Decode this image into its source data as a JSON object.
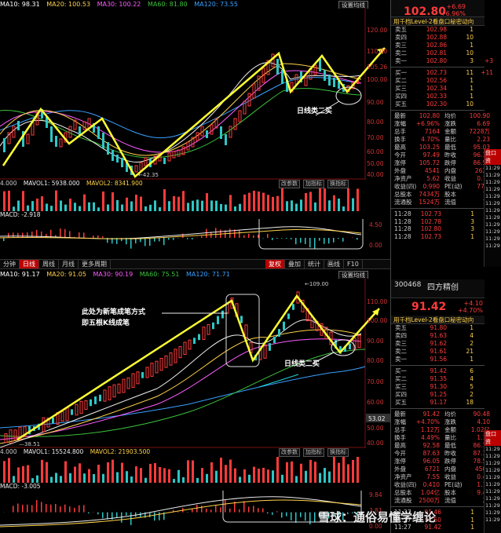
{
  "panel1": {
    "ma": [
      {
        "label": "MA10: 98.31",
        "color": "#ffffff"
      },
      {
        "label": "MA20: 100.53",
        "color": "#ffd24a"
      },
      {
        "label": "MA30: 100.22",
        "color": "#ff5bff"
      },
      {
        "label": "MA60: 81.80",
        "color": "#3cc23c"
      },
      {
        "label": "MA120: 73.55",
        "color": "#3aa0ff"
      }
    ],
    "cycle": "设置均线",
    "annotation": "日线类二买",
    "axis": [
      "120.00",
      "110.00",
      "105.26",
      "100.00",
      "90.00",
      "80.00",
      "70.00",
      "60.00",
      "50.00",
      "40.00"
    ],
    "low_label": "42.35",
    "vol_bar": {
      "a": "4.000",
      "b": "MAVOL1: 5938.000",
      "c": "MAVOL2: 8341.900"
    },
    "vol_btns": [
      "改参数",
      "加指标",
      "换指标"
    ],
    "macd": "MACD: -2.918",
    "macd_axis": [
      "4.50",
      "0.00"
    ],
    "tabs": [
      "分钟",
      "日线",
      "周线",
      "月线",
      "更多周期"
    ],
    "tab_right": [
      "复权",
      "叠加",
      "统计",
      "画线",
      "F10",
      "标记",
      "自选",
      "返回"
    ]
  },
  "panel2": {
    "ma": [
      {
        "label": "MA10: 91.17",
        "color": "#ffffff"
      },
      {
        "label": "MA20: 91.05",
        "color": "#ffd24a"
      },
      {
        "label": "MA30: 90.19",
        "color": "#ff5bff"
      },
      {
        "label": "MA60: 75.51",
        "color": "#3cc23c"
      },
      {
        "label": "MA120: 71.71",
        "color": "#3aa0ff"
      }
    ],
    "cycle": "设置均线",
    "annotation1a": "此处为新笔成笔方式",
    "annotation1b": "即五根K线成笔",
    "annotation2": "日线类二买",
    "axis": [
      "110.00",
      "100.00",
      "90.00",
      "80.00",
      "70.00",
      "60.00",
      "53.02",
      "50.00",
      "40.00"
    ],
    "high_label": "109.00",
    "low_label": "38.51",
    "vol_bar": {
      "a": "4.000",
      "b": "MAVOL1: 15524.800",
      "c": "MAVOL2: 21903.500"
    },
    "vol_btns": [
      "改参数",
      "加指标",
      "换指标"
    ],
    "macd": "MACD: -3.005",
    "macd_axis": [
      "9.84",
      "3.81",
      "0.00"
    ]
  },
  "stock1": {
    "price": "102.80",
    "change1": "+6.69",
    "change2": "+6.96%",
    "level_title": "用千档Level-2看盘口秘密动向",
    "asks": [
      {
        "label": "卖五",
        "price": "102.98",
        "vol": "1",
        "chg": ""
      },
      {
        "label": "卖四",
        "price": "102.88",
        "vol": "10",
        "chg": ""
      },
      {
        "label": "卖三",
        "price": "102.86",
        "vol": "1",
        "chg": ""
      },
      {
        "label": "卖二",
        "price": "102.81",
        "vol": "10",
        "chg": ""
      },
      {
        "label": "卖一",
        "price": "102.80",
        "vol": "3",
        "chg": "+3"
      }
    ],
    "bids": [
      {
        "label": "买一",
        "price": "102.73",
        "vol": "11",
        "chg": "+11"
      },
      {
        "label": "买二",
        "price": "102.56",
        "vol": "1",
        "chg": ""
      },
      {
        "label": "买三",
        "price": "102.34",
        "vol": "1",
        "chg": ""
      },
      {
        "label": "买四",
        "price": "102.33",
        "vol": "1",
        "chg": ""
      },
      {
        "label": "买五",
        "price": "102.30",
        "vol": "10",
        "chg": ""
      }
    ],
    "stats": [
      [
        "最新",
        "102.80",
        "均价",
        "100.90"
      ],
      [
        "涨幅",
        "+6.96%",
        "涨跌",
        "6.69"
      ],
      [
        "总手",
        "7164",
        "金额",
        "7228万"
      ],
      [
        "换手",
        "4.70%",
        "量比",
        "2.23"
      ],
      [
        "最高",
        "103.25",
        "最低",
        "95.03"
      ],
      [
        "今开",
        "97.49",
        "昨收",
        "96.11"
      ],
      [
        "涨停",
        "105.72",
        "跌停",
        "86.50"
      ],
      [
        "外盘",
        "4541",
        "内盘",
        "2623"
      ],
      [
        "净资产",
        "5.62",
        "收益",
        "0.73"
      ],
      [
        "收益(四)",
        "0.990",
        "PE(动)",
        "77.8"
      ],
      [
        "总股本",
        "7434万",
        "股本",
        "76"
      ],
      [
        "流通股",
        "1524万",
        "流值",
        "15"
      ]
    ],
    "ticks": [
      {
        "t": "11:28",
        "p": "102.73",
        "v": "1"
      },
      {
        "t": "11:28",
        "p": "102.78",
        "v": "3"
      },
      {
        "t": "11:28",
        "p": "102.80",
        "v": "3"
      },
      {
        "t": "11:28",
        "p": "102.73",
        "v": "1"
      }
    ],
    "side_header": "盘口资",
    "side_times": [
      "11:29",
      "11:29",
      "11:29",
      "11:29",
      "11:29",
      "11:29",
      "11:29",
      "11:29",
      "11:29",
      "11:29",
      "11:29",
      "11:29"
    ]
  },
  "stock2": {
    "code": "300468",
    "name": "四方精创",
    "price": "91.42",
    "change1": "+4.10",
    "change2": "+4.70%",
    "level_title": "用千档Level-2看盘口秘密动向",
    "asks": [
      {
        "label": "卖五",
        "price": "91.80",
        "vol": "1"
      },
      {
        "label": "卖四",
        "price": "91.63",
        "vol": "4"
      },
      {
        "label": "卖三",
        "price": "91.62",
        "vol": "2"
      },
      {
        "label": "卖二",
        "price": "91.61",
        "vol": "21"
      },
      {
        "label": "卖一",
        "price": "91.56",
        "vol": "1"
      }
    ],
    "bids": [
      {
        "label": "买一",
        "price": "91.42",
        "vol": "6"
      },
      {
        "label": "买二",
        "price": "91.35",
        "vol": "4"
      },
      {
        "label": "买三",
        "price": "91.30",
        "vol": "5"
      },
      {
        "label": "买四",
        "price": "91.25",
        "vol": "2"
      },
      {
        "label": "买五",
        "price": "91.17",
        "vol": "18"
      }
    ],
    "stats": [
      [
        "最新",
        "91.42",
        "均价",
        "90.48"
      ],
      [
        "涨幅",
        "+4.70%",
        "涨跌",
        "4.10"
      ],
      [
        "总手",
        "1.12万",
        "金额",
        "1.02亿"
      ],
      [
        "换手",
        "4.49%",
        "量比",
        "1.19"
      ],
      [
        "最高",
        "92.58",
        "最低",
        "86.10"
      ],
      [
        "今开",
        "87.63",
        "昨收",
        "87.32"
      ],
      [
        "涨停",
        "96.05",
        "跌停",
        "78.59"
      ],
      [
        "外盘",
        "6721",
        "内盘",
        "4506"
      ],
      [
        "净资产",
        "7.55",
        "收益",
        "0.40"
      ],
      [
        "收益(四)",
        "0.410",
        "PE(动)",
        "1.10"
      ],
      [
        "总股本",
        "1.04亿",
        "股本",
        "9.44"
      ],
      [
        "流通股",
        "2500万",
        "流值",
        "22"
      ]
    ],
    "ticks": [
      {
        "t": "11:27",
        "p": "91.46",
        "v": "1"
      },
      {
        "t": "11:27",
        "p": "91.50",
        "v": "1"
      },
      {
        "t": "11:27",
        "p": "91.42",
        "v": "1"
      }
    ],
    "side_header": "盘口资",
    "side_times": [
      "11:29",
      "11:29",
      "11:29",
      "11:29",
      "11:29",
      "11:29",
      "11:29",
      "11:29",
      "11:29",
      "11:29",
      "11:29"
    ]
  },
  "watermark": "雪球：通俗易懂学缠论"
}
